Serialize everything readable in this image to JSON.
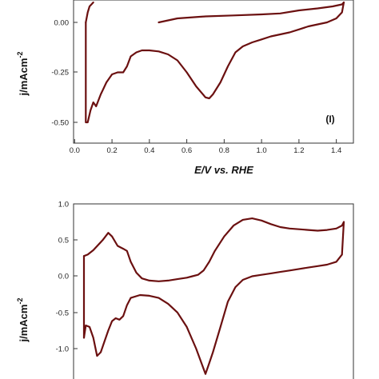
{
  "chart_data": [
    {
      "type": "line",
      "title": "",
      "xlabel": "E/V vs. RHE",
      "ylabel": "j/mAcm",
      "ylabel_superscript": "-2",
      "xlim": [
        0.0,
        1.5
      ],
      "ylim": [
        -0.6,
        0.1
      ],
      "xticks": [
        "0.0",
        "0.2",
        "0.4",
        "0.6",
        "0.8",
        "1.0",
        "1.2",
        "1.4"
      ],
      "yticks": [
        "0.00",
        "-0.25",
        "-0.50"
      ],
      "annotation": "(I)",
      "grid": false,
      "line_color": "#6b1010",
      "series": [
        {
          "x": [
            0.45,
            0.55,
            0.7,
            0.85,
            1.0,
            1.1,
            1.2,
            1.3,
            1.38,
            1.43,
            1.44
          ],
          "y": [
            0.0,
            0.02,
            0.03,
            0.035,
            0.04,
            0.045,
            0.06,
            0.07,
            0.08,
            0.09,
            0.1
          ]
        },
        {
          "x": [
            0.06,
            0.06,
            0.07,
            0.085,
            0.1,
            0.115,
            0.14,
            0.17,
            0.2,
            0.23,
            0.26,
            0.28,
            0.3,
            0.33,
            0.36,
            0.4,
            0.45,
            0.5,
            0.55,
            0.6,
            0.65,
            0.7,
            0.72,
            0.74,
            0.78,
            0.82,
            0.86,
            0.9,
            0.95,
            1.0,
            1.05,
            1.1,
            1.15,
            1.2,
            1.25,
            1.3,
            1.35,
            1.4,
            1.43,
            1.44
          ],
          "y": [
            0.0,
            -0.5,
            -0.5,
            -0.44,
            -0.4,
            -0.42,
            -0.36,
            -0.3,
            -0.26,
            -0.25,
            -0.25,
            -0.22,
            -0.17,
            -0.15,
            -0.14,
            -0.14,
            -0.145,
            -0.16,
            -0.19,
            -0.25,
            -0.32,
            -0.375,
            -0.38,
            -0.36,
            -0.3,
            -0.22,
            -0.15,
            -0.12,
            -0.1,
            -0.085,
            -0.07,
            -0.06,
            -0.05,
            -0.035,
            -0.02,
            -0.01,
            0.0,
            0.02,
            0.05,
            0.1
          ]
        },
        {
          "x": [
            0.06,
            0.07,
            0.08,
            0.1
          ],
          "y": [
            0.0,
            0.05,
            0.08,
            0.1
          ]
        }
      ]
    },
    {
      "type": "line",
      "title": "",
      "xlabel": "",
      "ylabel": "j/mAcm",
      "ylabel_superscript": "-2",
      "xlim": [
        0.0,
        1.5
      ],
      "ylim": [
        -1.35,
        1.0
      ],
      "xticks": [],
      "yticks": [
        "1.0",
        "0.5",
        "0.0",
        "-0.5",
        "-1.0"
      ],
      "grid": false,
      "line_color": "#6b1010",
      "series": [
        {
          "x": [
            0.05,
            0.07,
            0.1,
            0.15,
            0.18,
            0.2,
            0.23,
            0.26,
            0.28,
            0.3,
            0.33,
            0.36,
            0.4,
            0.45,
            0.5,
            0.55,
            0.6,
            0.63,
            0.66,
            0.69,
            0.72,
            0.75,
            0.8,
            0.85,
            0.9,
            0.95,
            1.0,
            1.05,
            1.1,
            1.15,
            1.2,
            1.25,
            1.3,
            1.35,
            1.4,
            1.43,
            1.44
          ],
          "y": [
            0.28,
            0.3,
            0.36,
            0.5,
            0.6,
            0.55,
            0.42,
            0.38,
            0.35,
            0.2,
            0.05,
            -0.03,
            -0.06,
            -0.07,
            -0.06,
            -0.04,
            -0.02,
            0.0,
            0.02,
            0.08,
            0.2,
            0.35,
            0.55,
            0.7,
            0.78,
            0.8,
            0.77,
            0.72,
            0.68,
            0.66,
            0.65,
            0.64,
            0.63,
            0.64,
            0.66,
            0.7,
            0.75
          ]
        },
        {
          "x": [
            1.44,
            1.43,
            1.4,
            1.35,
            1.3,
            1.25,
            1.2,
            1.15,
            1.1,
            1.05,
            1.0,
            0.95,
            0.9,
            0.86,
            0.82,
            0.78,
            0.74,
            0.72,
            0.7,
            0.65,
            0.6,
            0.55,
            0.5,
            0.45,
            0.4,
            0.35,
            0.3,
            0.28,
            0.26,
            0.24,
            0.22,
            0.2,
            0.18,
            0.16,
            0.14,
            0.12,
            0.1,
            0.08,
            0.06,
            0.05
          ],
          "y": [
            0.75,
            0.3,
            0.2,
            0.16,
            0.14,
            0.12,
            0.1,
            0.08,
            0.06,
            0.04,
            0.02,
            0.0,
            -0.05,
            -0.15,
            -0.35,
            -0.7,
            -1.05,
            -1.2,
            -1.35,
            -1.0,
            -0.7,
            -0.5,
            -0.38,
            -0.3,
            -0.27,
            -0.26,
            -0.3,
            -0.4,
            -0.55,
            -0.6,
            -0.58,
            -0.62,
            -0.75,
            -0.9,
            -1.05,
            -1.1,
            -0.85,
            -0.7,
            -0.68,
            -0.85
          ]
        },
        {
          "x": [
            0.05,
            0.05
          ],
          "y": [
            -0.85,
            0.28
          ]
        }
      ]
    }
  ]
}
